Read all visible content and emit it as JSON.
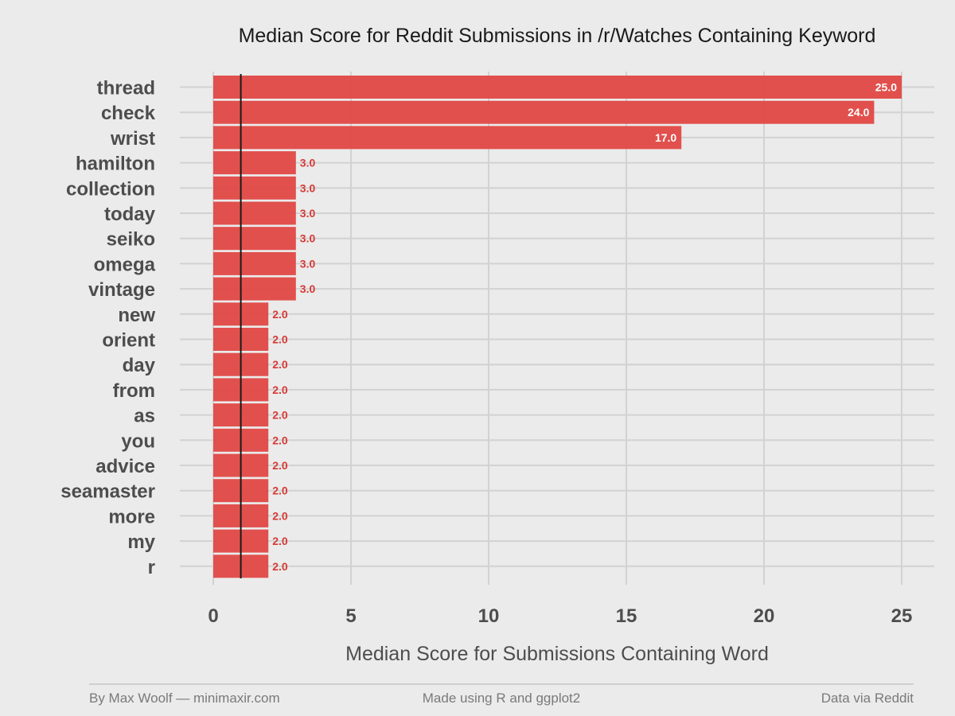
{
  "chart_data": {
    "type": "bar",
    "orientation": "horizontal",
    "title": "Median Score for Reddit Submissions in /r/Watches Containing Keyword",
    "xlabel": "Median Score for Submissions Containing Word",
    "ylabel": "",
    "categories": [
      "thread",
      "check",
      "wrist",
      "hamilton",
      "collection",
      "today",
      "seiko",
      "omega",
      "vintage",
      "new",
      "orient",
      "day",
      "from",
      "as",
      "you",
      "advice",
      "seamaster",
      "more",
      "my",
      "r"
    ],
    "values": [
      25,
      24,
      17,
      3,
      3,
      3,
      3,
      3,
      3,
      2,
      2,
      2,
      2,
      2,
      2,
      2,
      2,
      2,
      2,
      2
    ],
    "value_labels": [
      "25.0",
      "24.0",
      "17.0",
      "3.0",
      "3.0",
      "3.0",
      "3.0",
      "3.0",
      "3.0",
      "2.0",
      "2.0",
      "2.0",
      "2.0",
      "2.0",
      "2.0",
      "2.0",
      "2.0",
      "2.0",
      "2.0",
      "2.0"
    ],
    "xlim": [
      0,
      25
    ],
    "xticks": [
      0,
      5,
      10,
      15,
      20,
      25
    ],
    "xtick_labels": [
      "0",
      "5",
      "10",
      "15",
      "20",
      "25"
    ],
    "reference_line": 1,
    "grid": true,
    "legend": "none"
  },
  "footer": {
    "left": "By Max Woolf — minimaxir.com",
    "center": "Made using R and ggplot2",
    "right": "Data via Reddit"
  },
  "colors": {
    "background": "#ebebeb",
    "bar": "#e04a47",
    "value_label_outside": "#d63a36",
    "value_label_inside": "#ffffff",
    "grid": "#d2d2d2",
    "reference_line": "#1a1a1a"
  }
}
